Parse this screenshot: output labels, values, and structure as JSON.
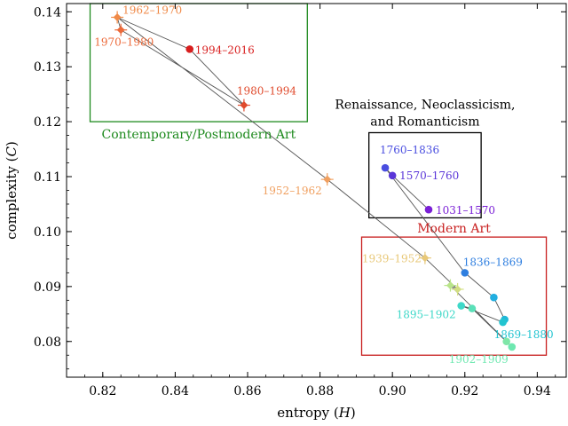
{
  "chart_data": {
    "type": "scatter",
    "xlabel": "entropy (",
    "xlabel_var": "H",
    "xlabel_close": ")",
    "ylabel": "complexity (",
    "ylabel_var": "C",
    "ylabel_close": ")",
    "xlim": [
      0.81,
      0.948
    ],
    "ylim": [
      0.0735,
      0.1415
    ],
    "x_ticks": [
      0.82,
      0.84,
      0.86,
      0.88,
      0.9,
      0.92,
      0.94
    ],
    "x_tick_labels": [
      "0.82",
      "0.84",
      "0.86",
      "0.88",
      "0.90",
      "0.92",
      "0.94"
    ],
    "y_ticks": [
      0.08,
      0.09,
      0.1,
      0.11,
      0.12,
      0.13,
      0.14
    ],
    "y_tick_labels": [
      "0.08",
      "0.09",
      "0.10",
      "0.11",
      "0.12",
      "0.13",
      "0.14"
    ],
    "grid": false,
    "points": [
      {
        "x": 0.91,
        "y": 0.104,
        "color": "#7a1fd6",
        "marker": "circle",
        "label": "1031–1570"
      },
      {
        "x": 0.9,
        "y": 0.1102,
        "color": "#5a36d8",
        "marker": "circle",
        "label": "1570–1760"
      },
      {
        "x": 0.898,
        "y": 0.1116,
        "color": "#4a4ee0",
        "marker": "circle",
        "label": "1760–1836"
      },
      {
        "x": 0.92,
        "y": 0.0925,
        "color": "#2f7fe0",
        "marker": "circle",
        "label": "1836–1869"
      },
      {
        "x": 0.928,
        "y": 0.088,
        "color": "#22aee0",
        "marker": "circle",
        "label": ""
      },
      {
        "x": 0.931,
        "y": 0.084,
        "color": "#1fb8d8",
        "marker": "circle",
        "label": ""
      },
      {
        "x": 0.9305,
        "y": 0.0835,
        "color": "#22c4d0",
        "marker": "circle",
        "label": "1869–1880"
      },
      {
        "x": 0.919,
        "y": 0.0865,
        "color": "#3ed8c8",
        "marker": "circle",
        "label": "1895–1902"
      },
      {
        "x": 0.922,
        "y": 0.086,
        "color": "#5ae0b8",
        "marker": "circle",
        "label": ""
      },
      {
        "x": 0.933,
        "y": 0.079,
        "color": "#6ee8b0",
        "marker": "circle",
        "label": "1902–1909"
      },
      {
        "x": 0.9315,
        "y": 0.08,
        "color": "#7fe6a8",
        "marker": "circle",
        "label": ""
      },
      {
        "x": 0.916,
        "y": 0.0902,
        "color": "#b9e48a",
        "marker": "diamond",
        "label": ""
      },
      {
        "x": 0.918,
        "y": 0.0895,
        "color": "#d2de82",
        "marker": "diamond",
        "label": ""
      },
      {
        "x": 0.909,
        "y": 0.0952,
        "color": "#e8c878",
        "marker": "diamond",
        "label": "1939–1952"
      },
      {
        "x": 0.882,
        "y": 0.1095,
        "color": "#f0a060",
        "marker": "diamond",
        "label": "1952–1962"
      },
      {
        "x": 0.824,
        "y": 0.139,
        "color": "#f08a48",
        "marker": "diamond",
        "label": "1962–1970"
      },
      {
        "x": 0.825,
        "y": 0.1367,
        "color": "#ec6a3a",
        "marker": "diamond",
        "label": "1970–1980"
      },
      {
        "x": 0.859,
        "y": 0.123,
        "color": "#e04a2c",
        "marker": "diamond",
        "label": "1980–1994"
      },
      {
        "x": 0.844,
        "y": 0.1332,
        "color": "#d81e1e",
        "marker": "circle",
        "label": "1994–2016"
      }
    ],
    "path": [
      [
        0.91,
        0.104
      ],
      [
        0.9,
        0.1102
      ],
      [
        0.898,
        0.1116
      ],
      [
        0.92,
        0.0925
      ],
      [
        0.928,
        0.088
      ],
      [
        0.931,
        0.084
      ],
      [
        0.9305,
        0.0835
      ],
      [
        0.919,
        0.0865
      ],
      [
        0.922,
        0.086
      ],
      [
        0.933,
        0.079
      ],
      [
        0.9315,
        0.08
      ],
      [
        0.916,
        0.0902
      ],
      [
        0.918,
        0.0895
      ],
      [
        0.909,
        0.0952
      ],
      [
        0.882,
        0.1095
      ],
      [
        0.824,
        0.139
      ],
      [
        0.825,
        0.1367
      ],
      [
        0.859,
        0.123
      ],
      [
        0.844,
        0.1332
      ],
      [
        0.824,
        0.139
      ]
    ],
    "annotations": [
      {
        "text": "Contemporary/Postmodern Art",
        "color": "#1e8a1e"
      },
      {
        "text": "Renaissance, Neoclassicism,",
        "color": "#000000"
      },
      {
        "text": "and Romanticism",
        "color": "#000000"
      },
      {
        "text": "Modern Art",
        "color": "#c81e1e"
      }
    ],
    "group_boxes": [
      {
        "name": "contemporary",
        "color": "#1e8a1e",
        "x0": 0.8165,
        "x1": 0.8765,
        "y0": 0.12,
        "y1": 0.1415
      },
      {
        "name": "renaissance",
        "color": "#000000",
        "x0": 0.8935,
        "x1": 0.9245,
        "y0": 0.1025,
        "y1": 0.118
      },
      {
        "name": "modern",
        "color": "#c81e1e",
        "x0": 0.8915,
        "x1": 0.9425,
        "y0": 0.0775,
        "y1": 0.099
      }
    ]
  }
}
